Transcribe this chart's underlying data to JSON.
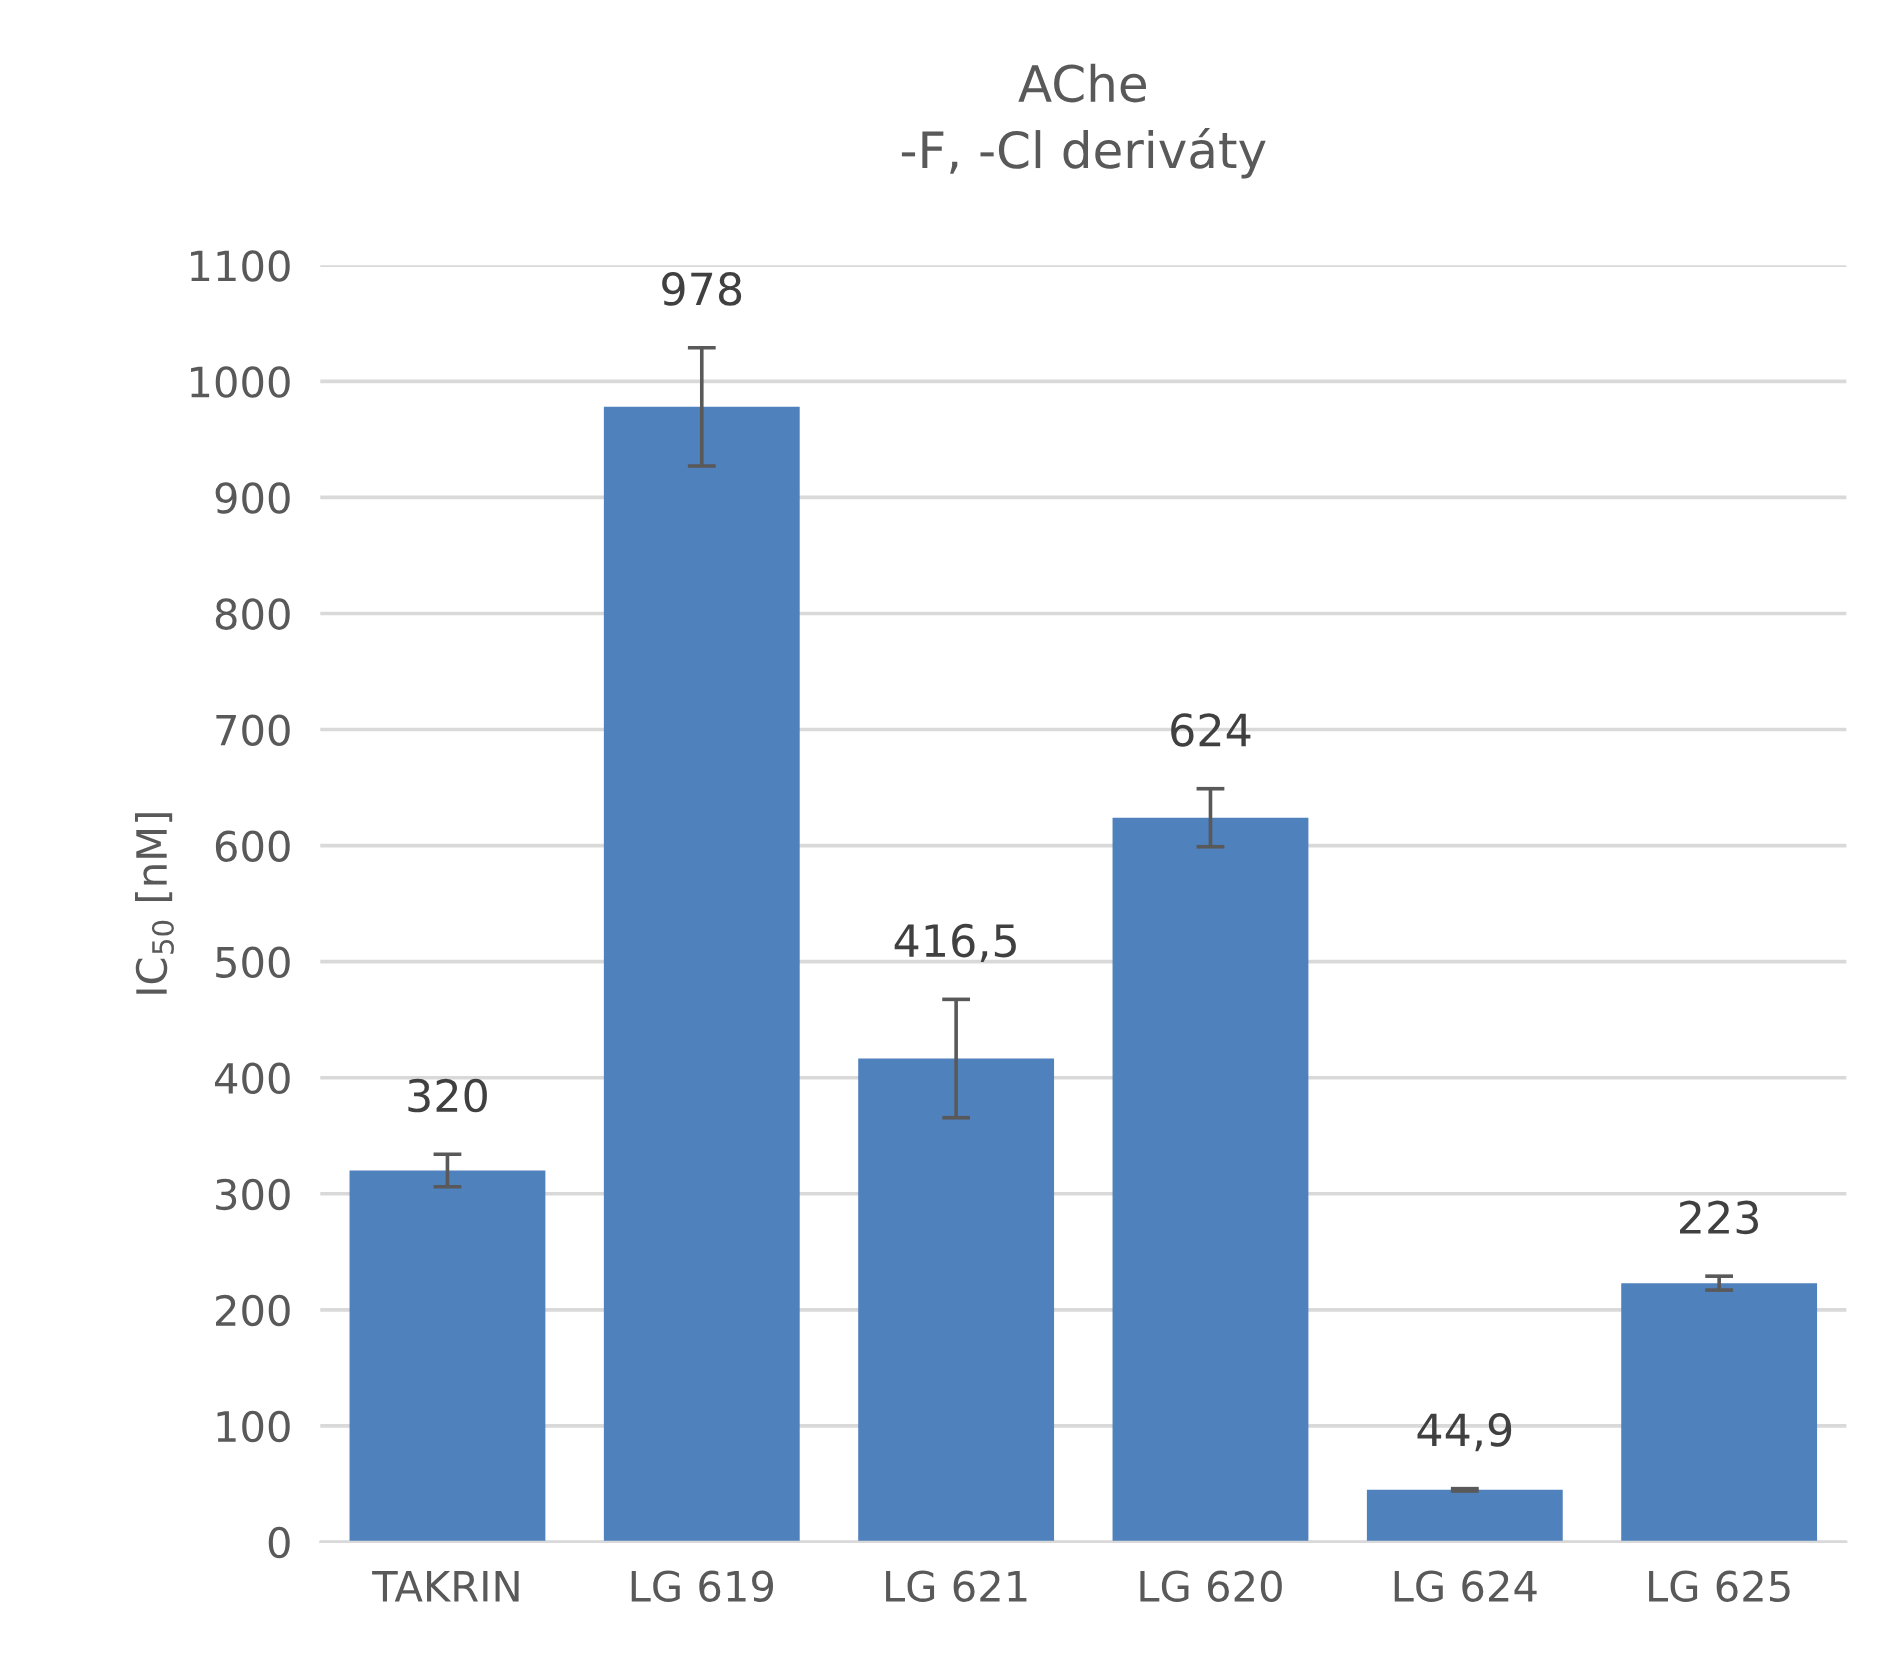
{
  "chart_data": {
    "type": "bar",
    "title": "AChe\n-F, -Cl deriváty",
    "ylabel": "IC$_{50}$ [nM]",
    "categories": [
      "TAKRIN",
      "LG 619",
      "LG 621",
      "LG 620",
      "LG 624",
      "LG 625"
    ],
    "values": [
      320,
      978,
      416.5,
      624,
      44.9,
      223
    ],
    "errors": [
      14,
      51,
      51,
      25,
      1,
      6
    ],
    "value_labels": [
      "320",
      "978",
      "416,5",
      "624",
      "44,9",
      "223"
    ],
    "color": "#4f81bd",
    "ylim": [
      0,
      1100
    ],
    "yticks": [
      0,
      100,
      200,
      300,
      400,
      500,
      600,
      700,
      800,
      900,
      1000,
      1100
    ],
    "grid": "y",
    "legend": false
  }
}
